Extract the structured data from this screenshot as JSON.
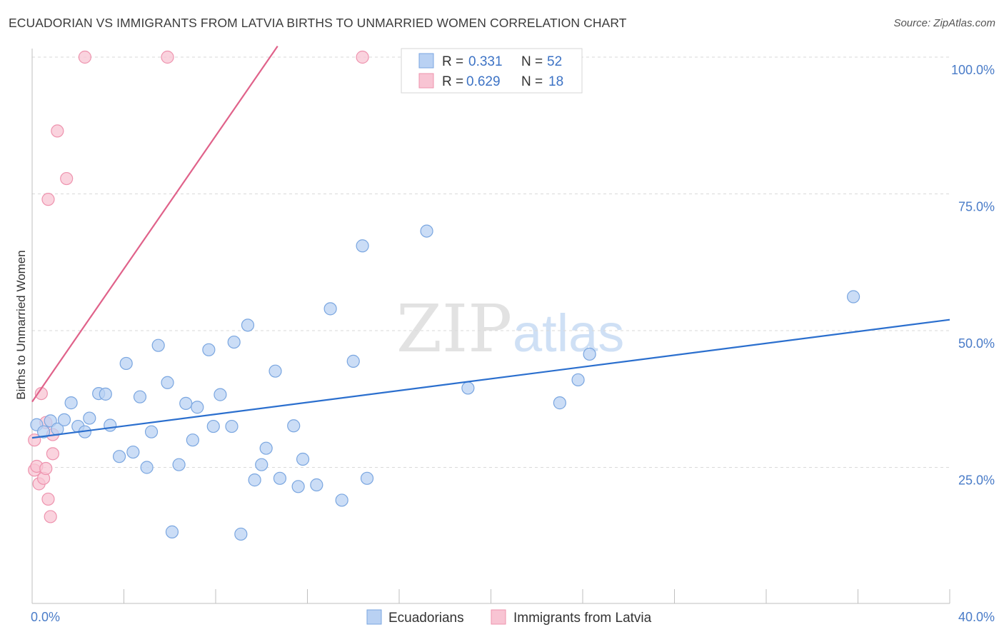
{
  "title": "ECUADORIAN VS IMMIGRANTS FROM LATVIA BIRTHS TO UNMARRIED WOMEN CORRELATION CHART",
  "source": "Source: ZipAtlas.com",
  "watermark": {
    "zip": "ZIP",
    "atlas": "atlas"
  },
  "colors": {
    "blue_fill": "#b9d1f3",
    "blue_stroke": "#7aa6e0",
    "blue_line": "#2b6fce",
    "pink_fill": "#f8c4d3",
    "pink_stroke": "#ee93ae",
    "pink_line": "#e0628a",
    "axis_text": "#4a7cc8",
    "grid": "#d9d9d9"
  },
  "legend": {
    "rows": [
      {
        "r_label": "R =",
        "r_value": "0.331",
        "n_label": "N =",
        "n_value": "52"
      },
      {
        "r_label": "R =",
        "r_value": "0.629",
        "n_label": "N =",
        "n_value": "18"
      }
    ]
  },
  "chart_data": {
    "type": "scatter",
    "title": "ECUADORIAN VS IMMIGRANTS FROM LATVIA BIRTHS TO UNMARRIED WOMEN CORRELATION CHART",
    "xlabel": "",
    "ylabel": "Births to Unmarried Women",
    "xlim": [
      0,
      40
    ],
    "ylim": [
      5,
      102
    ],
    "x_tick_labels": [
      "0.0%",
      "40.0%"
    ],
    "y_ticks": [
      25,
      50,
      75,
      100
    ],
    "y_tick_labels": [
      "25.0%",
      "50.0%",
      "75.0%",
      "100.0%"
    ],
    "grid": true,
    "legend_position": "top-center",
    "series": [
      {
        "name": "Ecuadorians",
        "color": "#b9d1f3",
        "r": 0.331,
        "n": 52,
        "trend": {
          "x": [
            0,
            40
          ],
          "y": [
            30.4,
            52.0
          ]
        },
        "points": [
          [
            0.2,
            32.8
          ],
          [
            0.5,
            31.5
          ],
          [
            0.8,
            33.5
          ],
          [
            1.1,
            32.0
          ],
          [
            1.4,
            33.7
          ],
          [
            1.7,
            36.8
          ],
          [
            2.0,
            32.5
          ],
          [
            2.3,
            31.5
          ],
          [
            2.5,
            34.0
          ],
          [
            2.9,
            38.5
          ],
          [
            3.2,
            38.4
          ],
          [
            3.4,
            32.7
          ],
          [
            3.8,
            27.0
          ],
          [
            4.1,
            44.0
          ],
          [
            4.4,
            27.8
          ],
          [
            4.7,
            37.9
          ],
          [
            5.0,
            25.0
          ],
          [
            5.2,
            31.5
          ],
          [
            5.5,
            47.3
          ],
          [
            5.9,
            40.5
          ],
          [
            6.1,
            13.2
          ],
          [
            6.4,
            25.5
          ],
          [
            6.7,
            36.7
          ],
          [
            7.0,
            30.0
          ],
          [
            7.2,
            36.0
          ],
          [
            7.7,
            46.5
          ],
          [
            7.9,
            32.5
          ],
          [
            8.2,
            38.3
          ],
          [
            8.7,
            32.5
          ],
          [
            8.8,
            47.9
          ],
          [
            9.1,
            12.8
          ],
          [
            9.4,
            51.0
          ],
          [
            9.7,
            22.7
          ],
          [
            10.0,
            25.5
          ],
          [
            10.2,
            28.5
          ],
          [
            10.6,
            42.6
          ],
          [
            10.8,
            23.0
          ],
          [
            11.4,
            32.6
          ],
          [
            11.6,
            21.5
          ],
          [
            11.8,
            26.5
          ],
          [
            12.4,
            21.8
          ],
          [
            13.0,
            54.0
          ],
          [
            13.5,
            19.0
          ],
          [
            14.0,
            44.4
          ],
          [
            14.4,
            65.5
          ],
          [
            14.6,
            23.0
          ],
          [
            17.2,
            68.2
          ],
          [
            19.0,
            39.5
          ],
          [
            23.0,
            36.8
          ],
          [
            23.8,
            41.0
          ],
          [
            24.3,
            45.7
          ],
          [
            35.8,
            56.2
          ]
        ]
      },
      {
        "name": "Immigrants from Latvia",
        "color": "#f8c4d3",
        "r": 0.629,
        "n": 18,
        "trend": {
          "x": [
            0,
            10.7
          ],
          "y": [
            37.0,
            102.0
          ]
        },
        "points": [
          [
            0.1,
            30.0
          ],
          [
            0.1,
            24.5
          ],
          [
            0.2,
            25.2
          ],
          [
            0.3,
            22.0
          ],
          [
            0.4,
            38.5
          ],
          [
            0.5,
            23.0
          ],
          [
            0.6,
            33.2
          ],
          [
            0.6,
            24.8
          ],
          [
            0.7,
            74.0
          ],
          [
            0.7,
            19.2
          ],
          [
            0.8,
            16.0
          ],
          [
            0.9,
            31.0
          ],
          [
            0.9,
            27.5
          ],
          [
            1.1,
            86.5
          ],
          [
            1.5,
            77.8
          ],
          [
            2.3,
            100.0
          ],
          [
            5.9,
            100.0
          ],
          [
            14.4,
            100.0
          ]
        ]
      }
    ]
  }
}
